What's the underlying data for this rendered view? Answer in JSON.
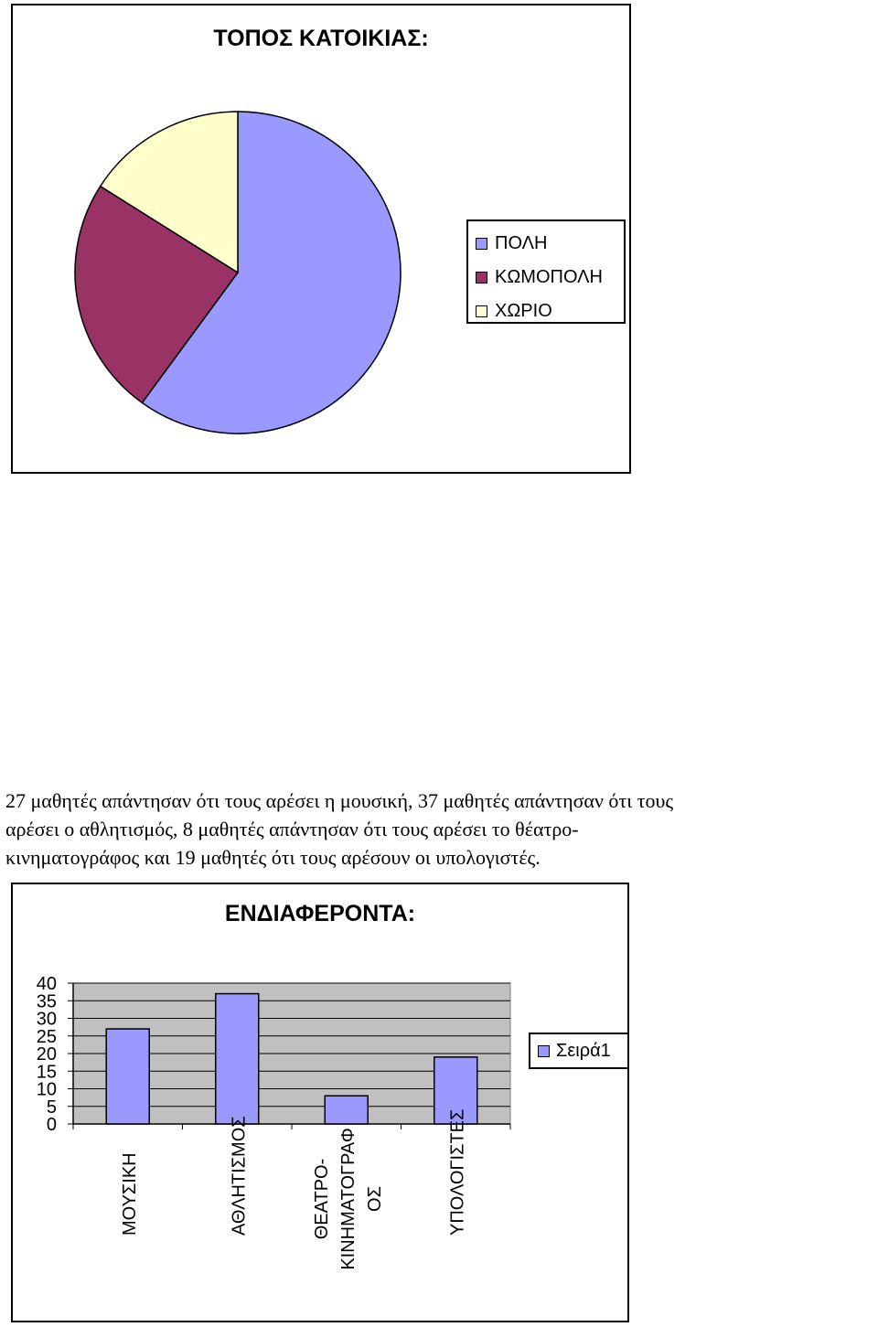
{
  "pie_chart": {
    "title": "ΤΟΠΟΣ ΚΑΤΟΙΚΙΑΣ:",
    "legend": [
      {
        "label": "ΠΟΛΗ",
        "color": "#9999FF"
      },
      {
        "label": "ΚΩΜΟΠΟΛΗ",
        "color": "#993366"
      },
      {
        "label": "ΧΩΡΙΟ",
        "color": "#FFFFCC"
      }
    ]
  },
  "paragraph": {
    "lines": [
      "27 μαθητές απάντησαν ότι τους αρέσει η μουσική, 37 μαθητές απάντησαν ότι τους",
      "αρέσει ο αθλητισμός, 8 μαθητές απάντησαν ότι τους αρέσει το θέατρο-",
      "κινηματογράφος και 19 μαθητές ότι τους αρέσουν οι υπολογιστές."
    ]
  },
  "bar_chart": {
    "title": "ΕΝΔΙΑΦΕΡΟΝΤΑ:",
    "legend_label": "Σειρά1",
    "plot_bg": "#C0C0C0",
    "bar_color": "#9999FF"
  },
  "chart_data": [
    {
      "type": "pie",
      "title": "ΤΟΠΟΣ ΚΑΤΟΙΚΙΑΣ:",
      "categories": [
        "ΠΟΛΗ",
        "ΚΩΜΟΠΟΛΗ",
        "ΧΩΡΙΟ"
      ],
      "values": [
        60,
        24,
        16
      ],
      "colors": [
        "#9999FF",
        "#993366",
        "#FFFFCC"
      ],
      "legend": "right"
    },
    {
      "type": "bar",
      "title": "ΕΝΔΙΑΦΕΡΟΝΤΑ:",
      "categories": [
        "ΜΟΥΣΙΚΗ",
        "ΑΘΛΗΤΙΣΜΟΣ",
        "ΘΕΑΤΡΟ-ΚΙΝΗΜΑΤΟΓΡΑΦΟΣ",
        "ΥΠΟΛΟΓΙΣΤΕΣ"
      ],
      "category_label_lines": [
        [
          "ΜΟΥΣΙΚΗ"
        ],
        [
          "ΑΘΛΗΤΙΣΜΟΣ"
        ],
        [
          "ΘΕΑΤΡΟ-",
          "ΚΙΝΗΜΑΤΟΓΡΑΦ",
          "ΟΣ"
        ],
        [
          "ΥΠΟΛΟΓΙΣΤΕΣ"
        ]
      ],
      "series": [
        {
          "name": "Σειρά1",
          "values": [
            27,
            37,
            8,
            19
          ]
        }
      ],
      "ylim": [
        0,
        40
      ],
      "yticks": [
        0,
        5,
        10,
        15,
        20,
        25,
        30,
        35,
        40
      ],
      "grid": true,
      "legend": "right"
    }
  ]
}
